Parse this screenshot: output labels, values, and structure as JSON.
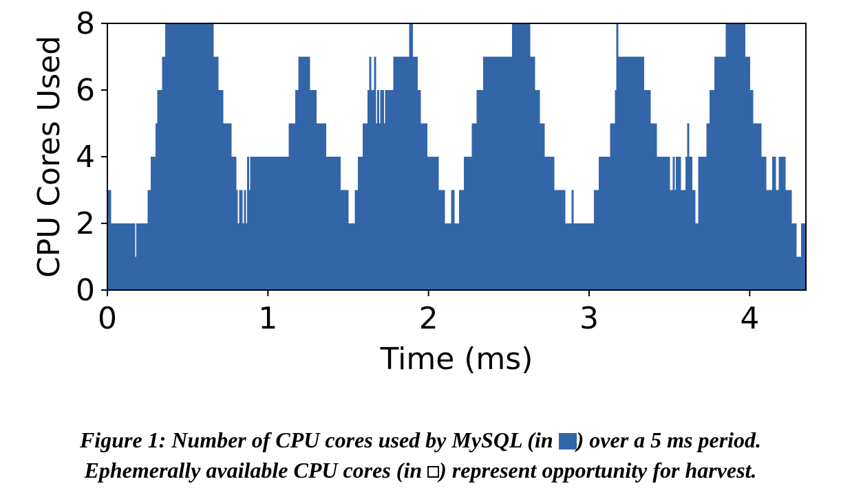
{
  "chart_data": {
    "type": "area",
    "step": "post",
    "xlabel": "Time (ms)",
    "ylabel": "CPU Cores Used",
    "xlim": [
      0,
      4.35
    ],
    "ylim": [
      0,
      8
    ],
    "xticks": [
      0,
      1,
      2,
      3,
      4
    ],
    "yticks": [
      0,
      2,
      4,
      6,
      8
    ],
    "grid": false,
    "color": "#3366a8",
    "series": [
      {
        "points": [
          [
            0.0,
            3
          ],
          [
            0.02,
            2
          ],
          [
            0.17,
            1
          ],
          [
            0.18,
            2
          ],
          [
            0.25,
            3
          ],
          [
            0.27,
            4
          ],
          [
            0.3,
            5
          ],
          [
            0.31,
            6
          ],
          [
            0.34,
            7
          ],
          [
            0.36,
            8
          ],
          [
            0.66,
            7
          ],
          [
            0.69,
            6
          ],
          [
            0.72,
            5
          ],
          [
            0.77,
            4
          ],
          [
            0.8,
            3
          ],
          [
            0.81,
            2
          ],
          [
            0.82,
            3
          ],
          [
            0.84,
            2
          ],
          [
            0.85,
            3
          ],
          [
            0.86,
            2
          ],
          [
            0.87,
            4
          ],
          [
            0.88,
            3
          ],
          [
            0.89,
            4
          ],
          [
            0.95,
            4
          ],
          [
            1.1,
            4
          ],
          [
            1.13,
            5
          ],
          [
            1.17,
            6
          ],
          [
            1.19,
            7
          ],
          [
            1.26,
            6
          ],
          [
            1.3,
            5
          ],
          [
            1.36,
            4
          ],
          [
            1.45,
            3
          ],
          [
            1.5,
            2
          ],
          [
            1.54,
            3
          ],
          [
            1.56,
            4
          ],
          [
            1.59,
            5
          ],
          [
            1.62,
            6
          ],
          [
            1.63,
            7
          ],
          [
            1.64,
            6
          ],
          [
            1.66,
            7
          ],
          [
            1.67,
            5
          ],
          [
            1.68,
            6
          ],
          [
            1.69,
            5
          ],
          [
            1.7,
            6
          ],
          [
            1.72,
            5
          ],
          [
            1.73,
            6
          ],
          [
            1.78,
            7
          ],
          [
            1.88,
            8
          ],
          [
            1.9,
            7
          ],
          [
            1.93,
            6
          ],
          [
            1.95,
            5
          ],
          [
            1.99,
            4
          ],
          [
            2.02,
            4
          ],
          [
            2.04,
            4
          ],
          [
            2.06,
            3
          ],
          [
            2.1,
            2
          ],
          [
            2.14,
            3
          ],
          [
            2.16,
            2
          ],
          [
            2.19,
            3
          ],
          [
            2.22,
            4
          ],
          [
            2.27,
            5
          ],
          [
            2.3,
            6
          ],
          [
            2.34,
            7
          ],
          [
            2.52,
            8
          ],
          [
            2.63,
            7
          ],
          [
            2.66,
            6
          ],
          [
            2.69,
            5
          ],
          [
            2.72,
            4
          ],
          [
            2.78,
            3
          ],
          [
            2.85,
            2
          ],
          [
            2.89,
            3
          ],
          [
            2.9,
            2
          ],
          [
            2.92,
            2
          ],
          [
            3.03,
            3
          ],
          [
            3.06,
            4
          ],
          [
            3.13,
            5
          ],
          [
            3.16,
            6
          ],
          [
            3.17,
            8
          ],
          [
            3.18,
            7
          ],
          [
            3.34,
            6
          ],
          [
            3.38,
            5
          ],
          [
            3.42,
            4
          ],
          [
            3.5,
            3
          ],
          [
            3.52,
            4
          ],
          [
            3.53,
            3
          ],
          [
            3.54,
            4
          ],
          [
            3.57,
            3
          ],
          [
            3.6,
            4
          ],
          [
            3.61,
            5
          ],
          [
            3.62,
            4
          ],
          [
            3.64,
            3
          ],
          [
            3.66,
            2
          ],
          [
            3.68,
            4
          ],
          [
            3.73,
            5
          ],
          [
            3.75,
            6
          ],
          [
            3.78,
            7
          ],
          [
            3.85,
            8
          ],
          [
            3.97,
            7
          ],
          [
            4.0,
            6
          ],
          [
            4.02,
            5
          ],
          [
            4.07,
            4
          ],
          [
            4.1,
            3
          ],
          [
            4.14,
            4
          ],
          [
            4.16,
            3
          ],
          [
            4.18,
            4
          ],
          [
            4.22,
            3
          ],
          [
            4.26,
            2
          ],
          [
            4.29,
            1
          ],
          [
            4.32,
            2
          ],
          [
            4.35,
            2
          ]
        ]
      }
    ]
  },
  "caption": {
    "line1_a": "Figure 1: Number of CPU cores used by MySQL (in ",
    "line1_b": ") over a 5 ms period.",
    "line2_a": "Ephemerally available CPU cores (in ",
    "line2_b": ") represent opportunity for harvest."
  }
}
